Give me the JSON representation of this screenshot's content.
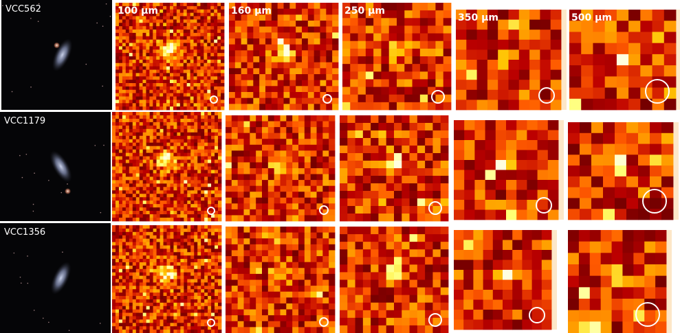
{
  "galaxies": [
    "VCC562",
    "VCC1179",
    "VCC1356"
  ],
  "bands": [
    "100 μm",
    "160 μm",
    "250 μm",
    "350 μm",
    "500 μm"
  ]
}
